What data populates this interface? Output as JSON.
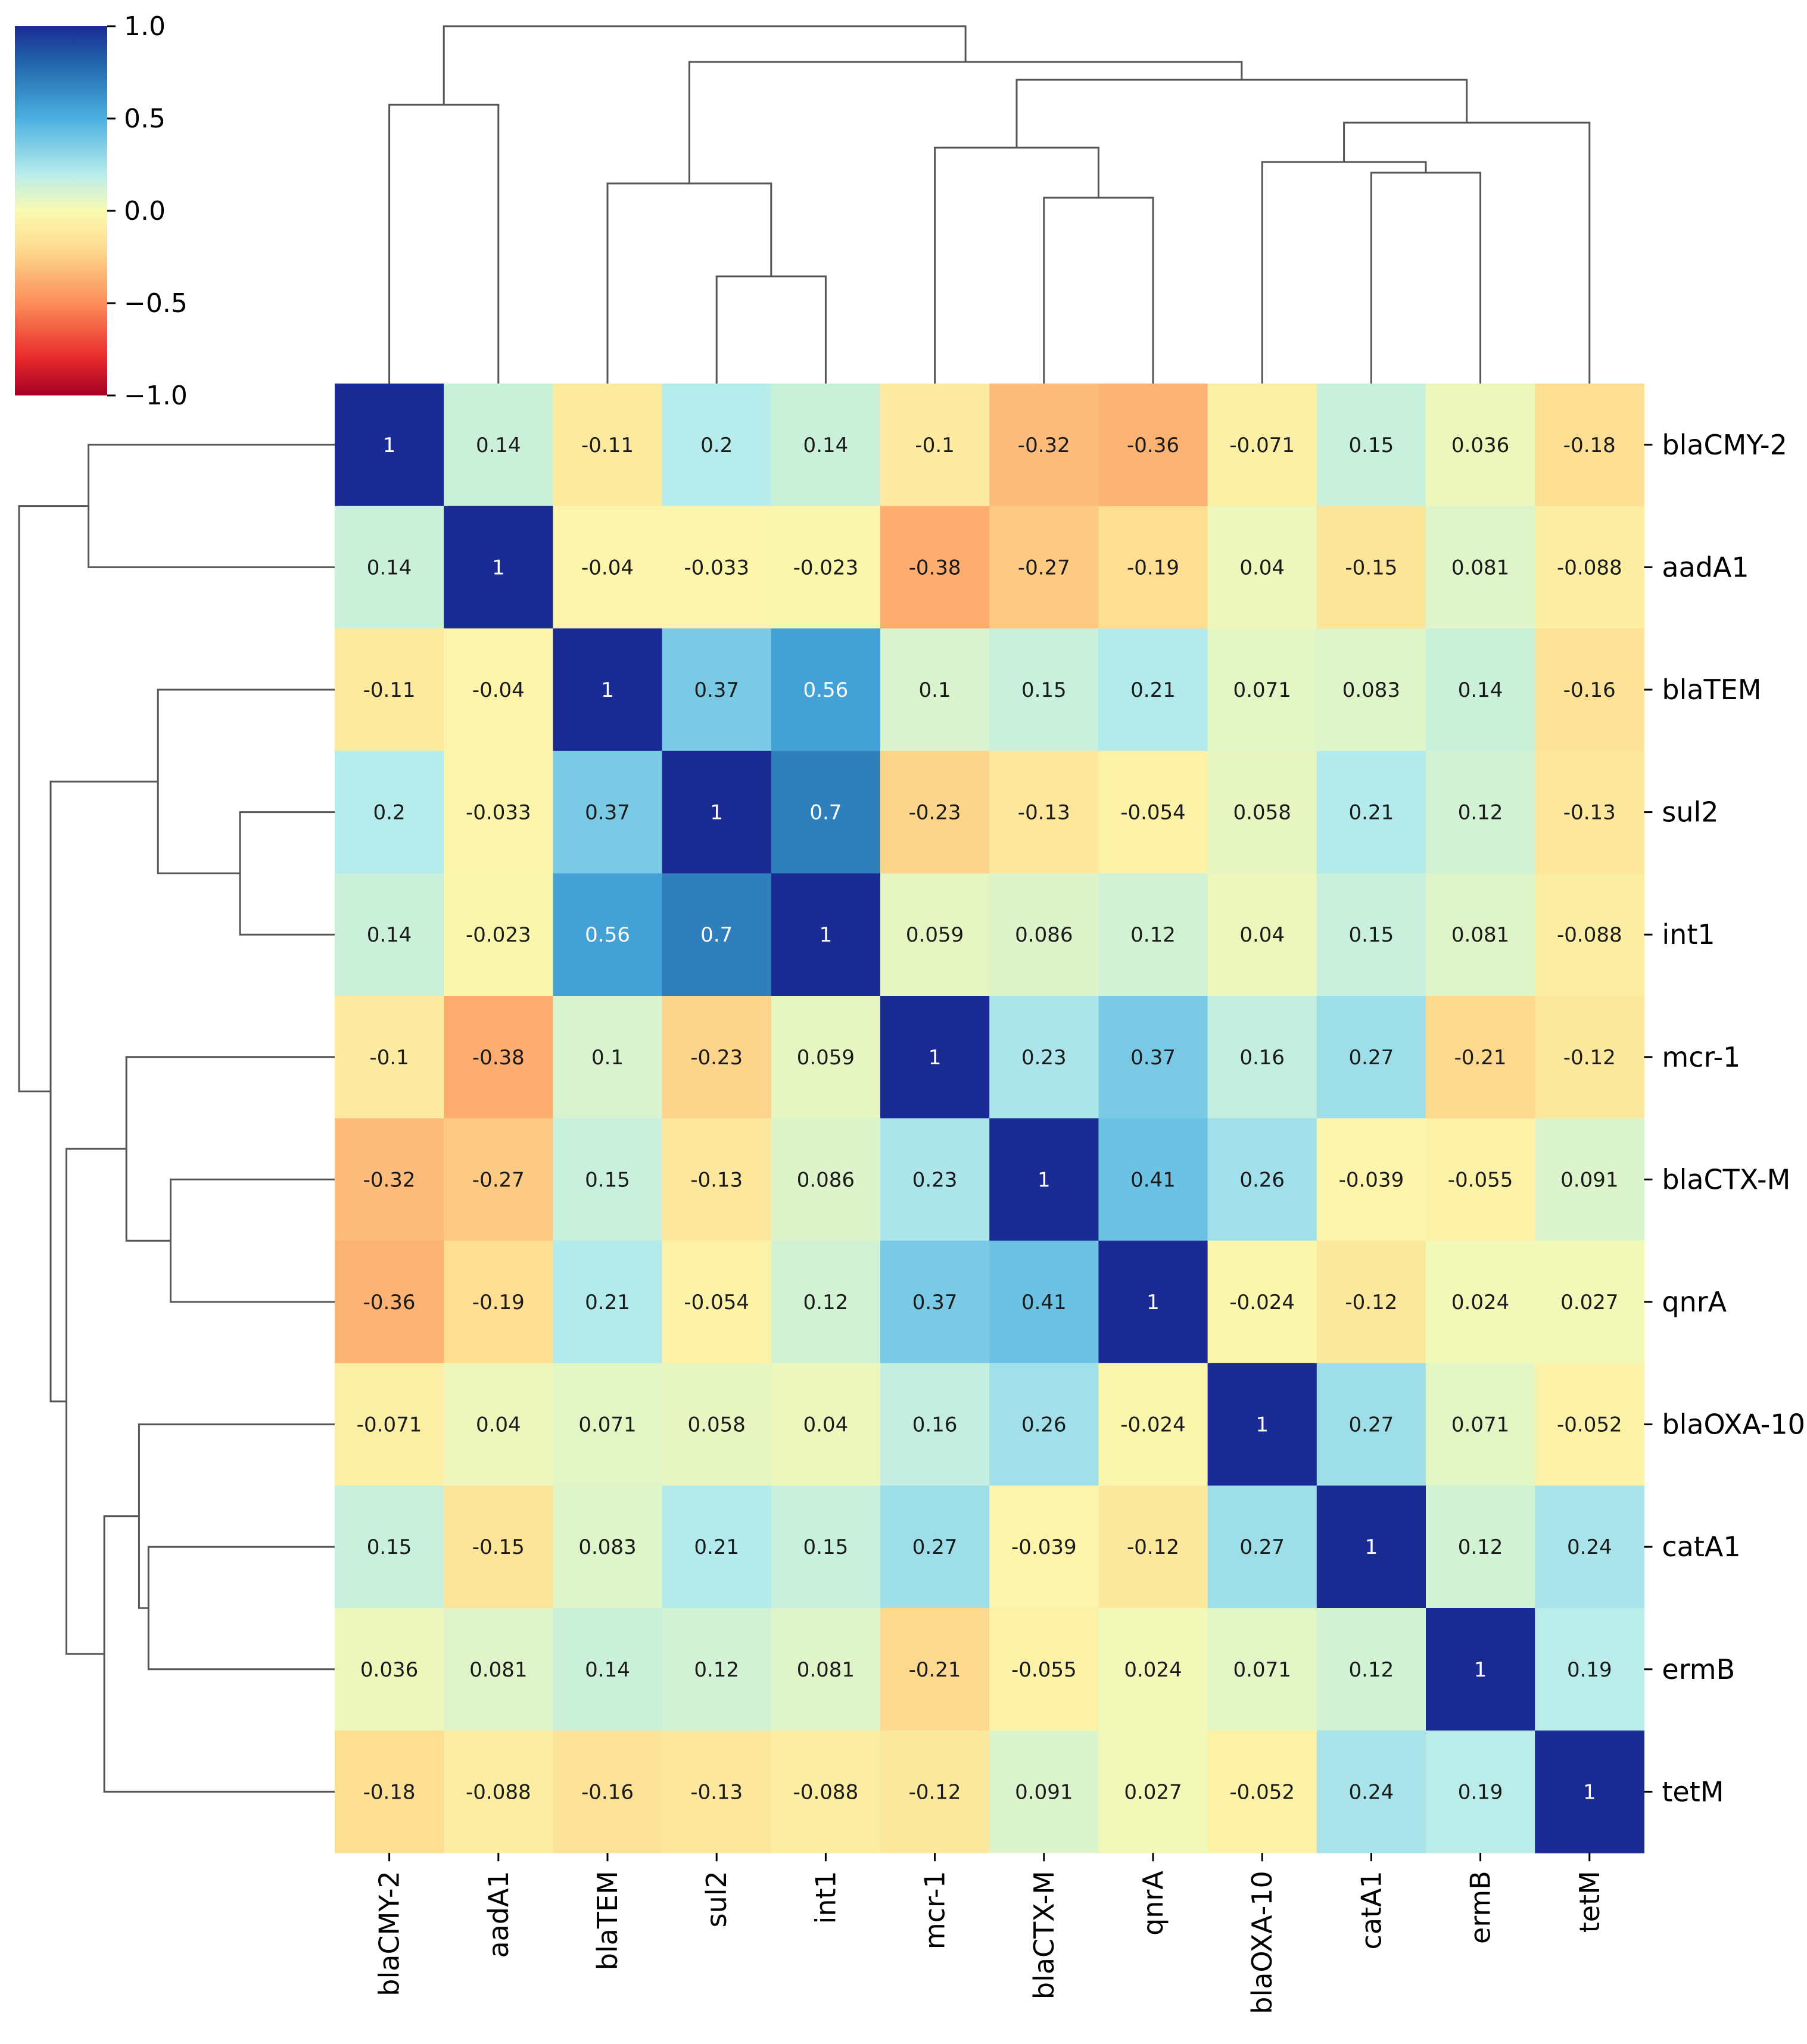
{
  "chart_data": {
    "type": "heatmap",
    "title": "",
    "labels": [
      "blaCMY-2",
      "aadA1",
      "blaTEM",
      "sul2",
      "int1",
      "mcr-1",
      "blaCTX-M",
      "qnrA",
      "blaOXA-10",
      "catA1",
      "ermB",
      "tetM"
    ],
    "matrix": [
      [
        "1",
        "0.14",
        "-0.11",
        "0.2",
        "0.14",
        "-0.1",
        "-0.32",
        "-0.36",
        "-0.071",
        "0.15",
        "0.036",
        "-0.18"
      ],
      [
        "0.14",
        "1",
        "-0.04",
        "-0.033",
        "-0.023",
        "-0.38",
        "-0.27",
        "-0.19",
        "0.04",
        "-0.15",
        "0.081",
        "-0.088"
      ],
      [
        "-0.11",
        "-0.04",
        "1",
        "0.37",
        "0.56",
        "0.1",
        "0.15",
        "0.21",
        "0.071",
        "0.083",
        "0.14",
        "-0.16"
      ],
      [
        "0.2",
        "-0.033",
        "0.37",
        "1",
        "0.7",
        "-0.23",
        "-0.13",
        "-0.054",
        "0.058",
        "0.21",
        "0.12",
        "-0.13"
      ],
      [
        "0.14",
        "-0.023",
        "0.56",
        "0.7",
        "1",
        "0.059",
        "0.086",
        "0.12",
        "0.04",
        "0.15",
        "0.081",
        "-0.088"
      ],
      [
        "-0.1",
        "-0.38",
        "0.1",
        "-0.23",
        "0.059",
        "1",
        "0.23",
        "0.37",
        "0.16",
        "0.27",
        "-0.21",
        "-0.12"
      ],
      [
        "-0.32",
        "-0.27",
        "0.15",
        "-0.13",
        "0.086",
        "0.23",
        "1",
        "0.41",
        "0.26",
        "-0.039",
        "-0.055",
        "0.091"
      ],
      [
        "-0.36",
        "-0.19",
        "0.21",
        "-0.054",
        "0.12",
        "0.37",
        "0.41",
        "1",
        "-0.024",
        "-0.12",
        "0.024",
        "0.027"
      ],
      [
        "-0.071",
        "0.04",
        "0.071",
        "0.058",
        "0.04",
        "0.16",
        "0.26",
        "-0.024",
        "1",
        "0.27",
        "0.071",
        "-0.052"
      ],
      [
        "0.15",
        "-0.15",
        "0.083",
        "0.21",
        "0.15",
        "0.27",
        "-0.039",
        "-0.12",
        "0.27",
        "1",
        "0.12",
        "0.24"
      ],
      [
        "0.036",
        "0.081",
        "0.14",
        "0.12",
        "0.081",
        "-0.21",
        "-0.055",
        "0.024",
        "0.071",
        "0.12",
        "1",
        "0.19"
      ],
      [
        "-0.18",
        "-0.088",
        "-0.16",
        "-0.13",
        "-0.088",
        "-0.12",
        "0.091",
        "0.027",
        "-0.052",
        "0.24",
        "0.19",
        "1"
      ]
    ],
    "colorbar": {
      "colormap": "RdYlBu",
      "range": [
        -1.0,
        1.0
      ],
      "ticks": [
        1.0,
        0.5,
        0.0,
        -0.5,
        -1.0
      ],
      "tick_labels": [
        "1.0",
        "0.5",
        "0.0",
        "−0.5",
        "−1.0"
      ]
    },
    "dendrogram": {
      "type": "hierarchical clustering",
      "linkage": [
        {
          "a": "sul2",
          "b": "int1",
          "height": 0.3
        },
        {
          "a": "blaCTX-M",
          "b": "qnrA",
          "height": 0.52
        },
        {
          "a": "blaTEM",
          "b": [
            "sul2",
            "int1"
          ],
          "height": 0.56
        },
        {
          "a": "catA1",
          "b": "ermB",
          "height": 0.59
        },
        {
          "a": "blaOXA-10",
          "b": [
            "catA1",
            "ermB"
          ],
          "height": 0.62
        },
        {
          "a": "mcr-1",
          "b": [
            "blaCTX-M",
            "qnrA"
          ],
          "height": 0.66
        },
        {
          "a": "tetM",
          "b": [
            "blaOXA-10",
            "catA1",
            "ermB"
          ],
          "height": 0.73
        },
        {
          "a": "blaCMY-2",
          "b": "aadA1",
          "height": 0.78
        },
        {
          "a": [
            "mcr-1",
            "blaCTX-M",
            "qnrA"
          ],
          "b": [
            "blaOXA-10",
            "catA1",
            "ermB",
            "tetM"
          ],
          "height": 0.85
        },
        {
          "a": [
            "blaTEM",
            "sul2",
            "int1"
          ],
          "b": [
            "mcr-1",
            "blaCTX-M",
            "qnrA",
            "blaOXA-10",
            "catA1",
            "ermB",
            "tetM"
          ],
          "height": 0.9
        },
        {
          "a": [
            "blaCMY-2",
            "aadA1"
          ],
          "b": [
            "blaTEM",
            "sul2",
            "int1",
            "mcr-1",
            "blaCTX-M",
            "qnrA",
            "blaOXA-10",
            "catA1",
            "ermB",
            "tetM"
          ],
          "height": 1.0
        }
      ]
    },
    "colors": {
      "dark_blue": "#1a2b94",
      "dendrogram": "#555555",
      "text_dark": "#1a1a1a",
      "text_light": "#ffffff"
    }
  }
}
